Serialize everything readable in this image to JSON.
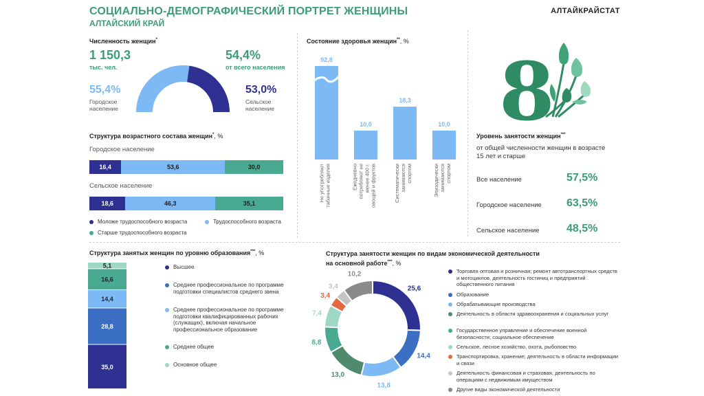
{
  "header": {
    "title": "СОЦИАЛЬНО-ДЕМОГРАФИЧЕСКИЙ ПОРТРЕТ ЖЕНЩИНЫ",
    "subtitle": "АЛТАЙСКИЙ КРАЙ",
    "brand": "АЛТАЙКРАЙСТАТ"
  },
  "population": {
    "title": "Численность женщин",
    "title_mark": "*",
    "total_value": "1 150,3",
    "total_unit": "тыс. чел.",
    "share_value": "54,4%",
    "share_text": "от всего населения",
    "urban_value": "55,4%",
    "urban_label_1": "Городское",
    "urban_label_2": "население",
    "rural_value": "53,0%",
    "rural_label_1": "Сельское",
    "rural_label_2": "население"
  },
  "age_structure": {
    "title": "Структура возрастного состава женщин",
    "title_mark": "*",
    "unit": ", %",
    "urban_label": "Городское население",
    "rural_label": "Сельское население",
    "urban": [
      "16,4",
      "53,6",
      "30,0"
    ],
    "rural": [
      "18,6",
      "46,3",
      "35,1"
    ],
    "legend": [
      "Моложе трудоспособного возраста",
      "Трудоспособного возраста",
      "Старше трудоспособного возраста"
    ]
  },
  "employment_level": {
    "title": "Уровень занятости женщин",
    "title_mark": "***",
    "desc_1": "от общей численности женщин в возрасте",
    "desc_2": "15 лет и старше",
    "rows": [
      {
        "label": "Все население",
        "value": "57,5%"
      },
      {
        "label": "Городское население",
        "value": "63,5%"
      },
      {
        "label": "Сельское население",
        "value": "48,5%"
      }
    ]
  },
  "colors": {
    "accent": "#3e9b79",
    "navy": "#2e3192",
    "blue": "#3a6fc4",
    "light_blue": "#7db9f5",
    "teal": "#4aaa91",
    "mint": "#9ed8c2",
    "dark_green": "#4d8a6e",
    "orange": "#e5683f",
    "light_gray": "#c4c4c4",
    "gray": "#8a8a8a"
  },
  "chart_data": [
    {
      "type": "gauge",
      "value": 54.4
    },
    {
      "type": "bar",
      "title": "Состояние здоровья женщин",
      "title_mark": "**",
      "unit": ", %",
      "categories": [
        "Не употребляют табачные изделия",
        "Ежедневно потребляют не менее 400 г. овощей и фруктов",
        "Систематически занимаются спортом",
        "Эпизодически занимаются спортом"
      ],
      "values": [
        92.8,
        10.0,
        18.3,
        10.0
      ],
      "value_labels": [
        "92,8",
        "10,0",
        "18,3",
        "10,0"
      ],
      "axis_break": true
    },
    {
      "type": "bar",
      "stacked": true,
      "title": "Структура занятых женщин по уровню образования",
      "title_mark": "***",
      "unit": ", %",
      "categories": [
        "Высшее",
        "Среднее профессиональное по программе подготовки специалистов среднего звена",
        "Среднее профессиональное по программе подготовки квалифицированных рабочих (служащих), включая начальное профессиональное образование",
        "Среднее общее",
        "Основное общее"
      ],
      "values": [
        35.0,
        28.8,
        14.4,
        16.6,
        5.1
      ],
      "value_labels": [
        "35,0",
        "28,8",
        "14,4",
        "16,6",
        "5,1"
      ],
      "colors": [
        "#2e3192",
        "#3a6fc4",
        "#7db9f5",
        "#4aaa91",
        "#9ed8c2"
      ]
    },
    {
      "type": "pie",
      "donut": true,
      "title_1": "Структура занятости женщин  по видам экономической деятельности",
      "title_2": "на основной работе",
      "title_mark": "***",
      "unit": ", %",
      "categories": [
        "Торговля оптовая и розничная; ремонт автотранспортных средств и мотоциклов, деятельность гостиниц и предприятий общественного питания",
        "Образование",
        "Обрабатывающие производства",
        "Деятельность в области здравоохранения и социальных услуг",
        "Государственное управление и обеспечение военной безопасности; социальное обеспечение",
        "Сельское, лесное хозяйство, охота, рыболовство",
        "Транспортировка, хранение; деятельность в области информации и связи",
        "Деятельность финансовая и страховая, деятельность по операциям с недвижимым имуществом",
        "Другие виды экономической деятельности"
      ],
      "values": [
        25.6,
        14.4,
        13.8,
        13.0,
        8.8,
        7.4,
        3.4,
        3.4,
        10.2
      ],
      "value_labels": [
        "25,6",
        "14,4",
        "13,8",
        "13,0",
        "8,8",
        "7,4",
        "3,4",
        "3,4",
        "10,2"
      ],
      "colors": [
        "#2e3192",
        "#3a6fc4",
        "#7db9f5",
        "#4d8a6e",
        "#4aaa91",
        "#9ed8c2",
        "#e5683f",
        "#c4c4c4",
        "#8a8a8a"
      ]
    }
  ]
}
